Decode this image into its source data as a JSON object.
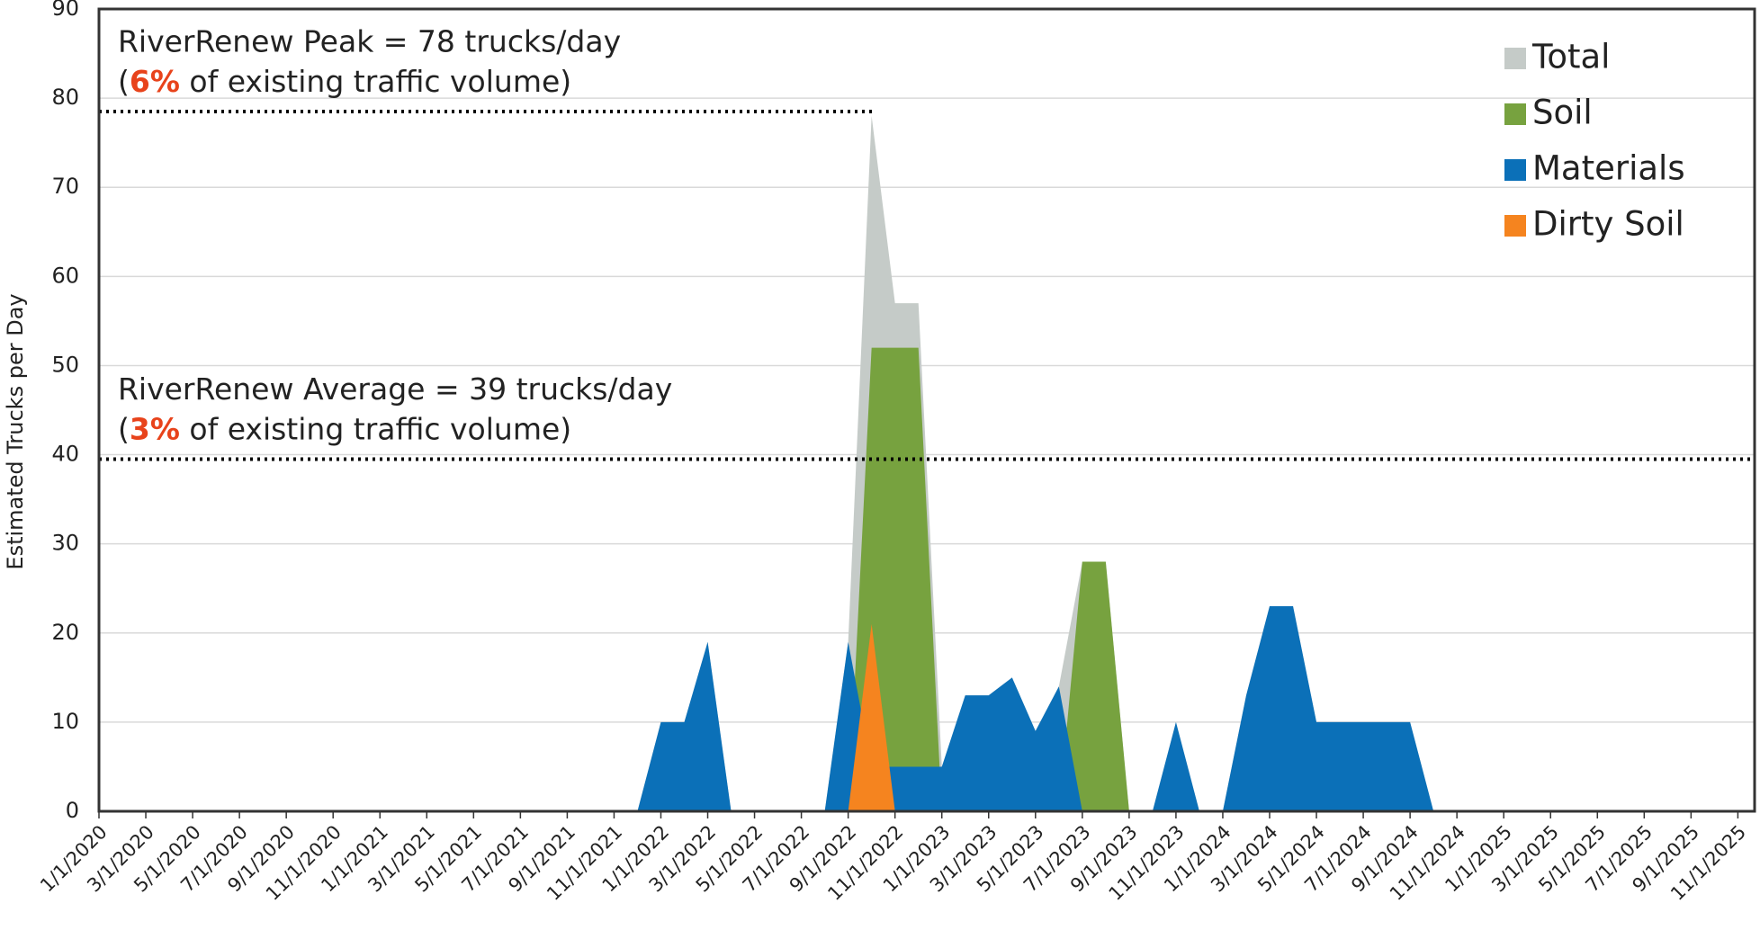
{
  "chart_data": {
    "type": "area",
    "y_label": "Estimated Trucks per Day",
    "categories": [
      "1/1/2020",
      null,
      "3/1/2020",
      null,
      "5/1/2020",
      null,
      "7/1/2020",
      null,
      "9/1/2020",
      null,
      "11/1/2020",
      null,
      "1/1/2021",
      null,
      "3/1/2021",
      null,
      "5/1/2021",
      null,
      "7/1/2021",
      null,
      "9/1/2021",
      null,
      "11/1/2021",
      null,
      "1/1/2022",
      null,
      "3/1/2022",
      null,
      "5/1/2022",
      null,
      "7/1/2022",
      null,
      "9/1/2022",
      null,
      "11/1/2022",
      null,
      "1/1/2023",
      null,
      "3/1/2023",
      null,
      "5/1/2023",
      null,
      "7/1/2023",
      null,
      "9/1/2023",
      null,
      "11/1/2023",
      null,
      "1/1/2024",
      null,
      "3/1/2024",
      null,
      "5/1/2024",
      null,
      "7/1/2024",
      null,
      "9/1/2024",
      null,
      "11/1/2024",
      null,
      "1/1/2025",
      null,
      "3/1/2025",
      null,
      "5/1/2025",
      null,
      "7/1/2025",
      null,
      "9/1/2025",
      null,
      "11/1/2025"
    ],
    "series": [
      {
        "name": "Total",
        "color": "#c5cbc8",
        "values": [
          0,
          0,
          0,
          0,
          0,
          0,
          0,
          0,
          0,
          0,
          0,
          0,
          0,
          0,
          0,
          0,
          0,
          0,
          0,
          0,
          0,
          0,
          0,
          0,
          10,
          10,
          19,
          0,
          0,
          0,
          0,
          0,
          19,
          78,
          57,
          57,
          5,
          13,
          13,
          15,
          9,
          14,
          28,
          28,
          0,
          0,
          10,
          0,
          0,
          13,
          23,
          23,
          10,
          10,
          10,
          10,
          10,
          0,
          0,
          0,
          0,
          0,
          0,
          0,
          0,
          0,
          0,
          0,
          0,
          0,
          0
        ]
      },
      {
        "name": "Soil",
        "color": "#77a23f",
        "values": [
          0,
          0,
          0,
          0,
          0,
          0,
          0,
          0,
          0,
          0,
          0,
          0,
          0,
          0,
          0,
          0,
          0,
          0,
          0,
          0,
          0,
          0,
          0,
          0,
          0,
          0,
          0,
          0,
          0,
          0,
          0,
          0,
          0,
          52,
          52,
          52,
          0,
          0,
          0,
          0,
          0,
          0,
          28,
          28,
          0,
          0,
          0,
          0,
          0,
          0,
          0,
          0,
          0,
          0,
          0,
          0,
          0,
          0,
          0,
          0,
          0,
          0,
          0,
          0,
          0,
          0,
          0,
          0,
          0,
          0,
          0
        ]
      },
      {
        "name": "Materials",
        "color": "#0b70b8",
        "values": [
          0,
          0,
          0,
          0,
          0,
          0,
          0,
          0,
          0,
          0,
          0,
          0,
          0,
          0,
          0,
          0,
          0,
          0,
          0,
          0,
          0,
          0,
          0,
          0,
          10,
          10,
          19,
          0,
          0,
          0,
          0,
          0,
          19,
          5,
          5,
          5,
          5,
          13,
          13,
          15,
          9,
          14,
          0,
          0,
          0,
          0,
          10,
          0,
          0,
          13,
          23,
          23,
          10,
          10,
          10,
          10,
          10,
          0,
          0,
          0,
          0,
          0,
          0,
          0,
          0,
          0,
          0,
          0,
          0,
          0,
          0
        ]
      },
      {
        "name": "Dirty Soil",
        "color": "#f5841f",
        "values": [
          0,
          0,
          0,
          0,
          0,
          0,
          0,
          0,
          0,
          0,
          0,
          0,
          0,
          0,
          0,
          0,
          0,
          0,
          0,
          0,
          0,
          0,
          0,
          0,
          0,
          0,
          0,
          0,
          0,
          0,
          0,
          0,
          0,
          21,
          0,
          0,
          0,
          0,
          0,
          0,
          0,
          0,
          0,
          0,
          0,
          0,
          0,
          0,
          0,
          0,
          0,
          0,
          0,
          0,
          0,
          0,
          0,
          0,
          0,
          0,
          0,
          0,
          0,
          0,
          0,
          0,
          0,
          0,
          0,
          0,
          0
        ]
      }
    ],
    "ylim": [
      0,
      90
    ],
    "yticks": [
      0,
      10,
      20,
      30,
      40,
      50,
      60,
      70,
      80,
      90
    ],
    "grid": true,
    "legend": "top-right",
    "reference_lines": [
      {
        "value": 78.5,
        "line1": "RiverRenew Peak = 78 trucks/day",
        "line2": [
          "(",
          "6%",
          " of existing traffic volume)"
        ]
      },
      {
        "value": 39.5,
        "line1": "RiverRenew Average = 39 trucks/day",
        "line2": [
          "(",
          "3%",
          " of existing traffic volume)"
        ]
      }
    ]
  }
}
